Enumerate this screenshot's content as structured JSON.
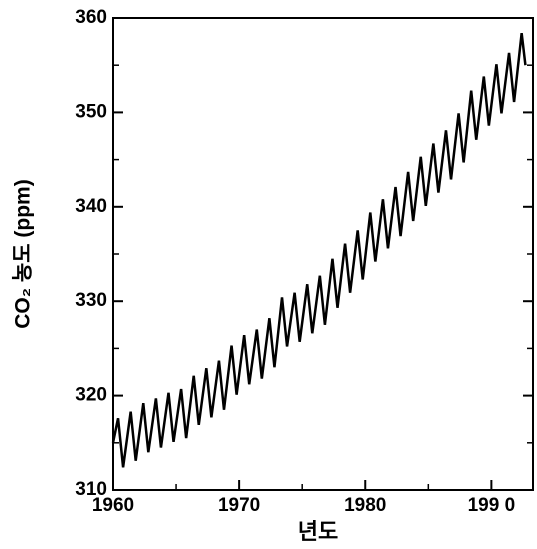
{
  "chart_data": {
    "type": "line",
    "x_label": "년도",
    "y_label": "CO₂ 농도 (ppm)",
    "x": [
      1960,
      1960.4,
      1960.8,
      1961.4,
      1961.8,
      1962.4,
      1962.8,
      1963.4,
      1963.8,
      1964.4,
      1964.8,
      1965.4,
      1965.8,
      1966.4,
      1966.8,
      1967.4,
      1967.8,
      1968.4,
      1968.8,
      1969.4,
      1969.8,
      1970.4,
      1970.8,
      1971.4,
      1971.8,
      1972.4,
      1972.8,
      1973.4,
      1973.8,
      1974.4,
      1974.8,
      1975.4,
      1975.8,
      1976.4,
      1976.8,
      1977.4,
      1977.8,
      1978.4,
      1978.8,
      1979.4,
      1979.8,
      1980.4,
      1980.8,
      1981.4,
      1981.8,
      1982.4,
      1982.8,
      1983.4,
      1983.8,
      1984.4,
      1984.8,
      1985.4,
      1985.8,
      1986.4,
      1986.8,
      1987.4,
      1987.8,
      1988.4,
      1988.8,
      1989.4,
      1989.8,
      1990.4,
      1990.8,
      1991.4,
      1991.8,
      1992.4,
      1992.7
    ],
    "series": [
      {
        "color": "#000000",
        "values": [
          315.0,
          317.6,
          312.4,
          318.3,
          313.1,
          319.2,
          314.0,
          319.7,
          314.5,
          320.3,
          315.1,
          320.7,
          315.5,
          322.1,
          316.9,
          322.9,
          317.7,
          323.7,
          318.5,
          325.3,
          320.1,
          326.4,
          321.2,
          327.0,
          321.8,
          328.2,
          323.0,
          330.4,
          325.2,
          330.9,
          325.7,
          331.8,
          326.6,
          332.7,
          327.5,
          334.5,
          329.3,
          336.1,
          330.9,
          337.5,
          332.3,
          339.4,
          334.2,
          340.8,
          335.6,
          342.1,
          336.9,
          343.7,
          338.5,
          345.3,
          340.1,
          346.7,
          341.5,
          348.1,
          342.9,
          349.9,
          344.7,
          352.3,
          347.1,
          353.8,
          348.6,
          355.1,
          349.9,
          356.3,
          351.1,
          358.4,
          355.0
        ]
      }
    ],
    "xlim": [
      1960,
      1993.3
    ],
    "ylim": [
      310,
      360
    ],
    "xticks": [
      1960,
      1970,
      1980,
      {
        "value": 1990,
        "label": "199 0"
      }
    ],
    "yticks": [
      310,
      320,
      330,
      340,
      350,
      360
    ],
    "xminorticks": [
      1965,
      1975,
      1985
    ],
    "yminorticks": [
      315,
      325,
      335,
      345,
      355
    ]
  }
}
